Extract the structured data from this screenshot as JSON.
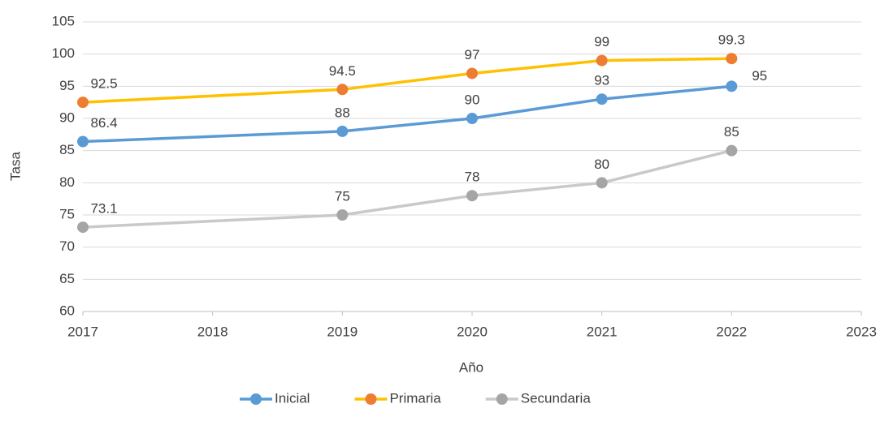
{
  "chart_data": {
    "type": "line",
    "x_label": "Año",
    "y_label": "Tasa",
    "x": [
      2017,
      2019,
      2020,
      2021,
      2022
    ],
    "series": [
      {
        "name": "Inicial",
        "color": "#5b9bd5",
        "marker_color": "#5b9bd5",
        "values": [
          86.4,
          88,
          90,
          93,
          95
        ]
      },
      {
        "name": "Primaria",
        "color": "#ffc000",
        "marker_color": "#ed7d31",
        "values": [
          92.5,
          94.5,
          97,
          99,
          99.3
        ]
      },
      {
        "name": "Secundaria",
        "color": "#c9c9c9",
        "marker_color": "#a5a5a5",
        "values": [
          73.1,
          75,
          78,
          80,
          85
        ]
      }
    ],
    "xlim": [
      2017,
      2023
    ],
    "xticks": [
      2017,
      2018,
      2019,
      2020,
      2021,
      2022,
      2023
    ],
    "ylim": [
      60,
      105
    ],
    "yticks": [
      60,
      65,
      70,
      75,
      80,
      85,
      90,
      95,
      100,
      105
    ],
    "grid": true,
    "legend": "bottom"
  }
}
